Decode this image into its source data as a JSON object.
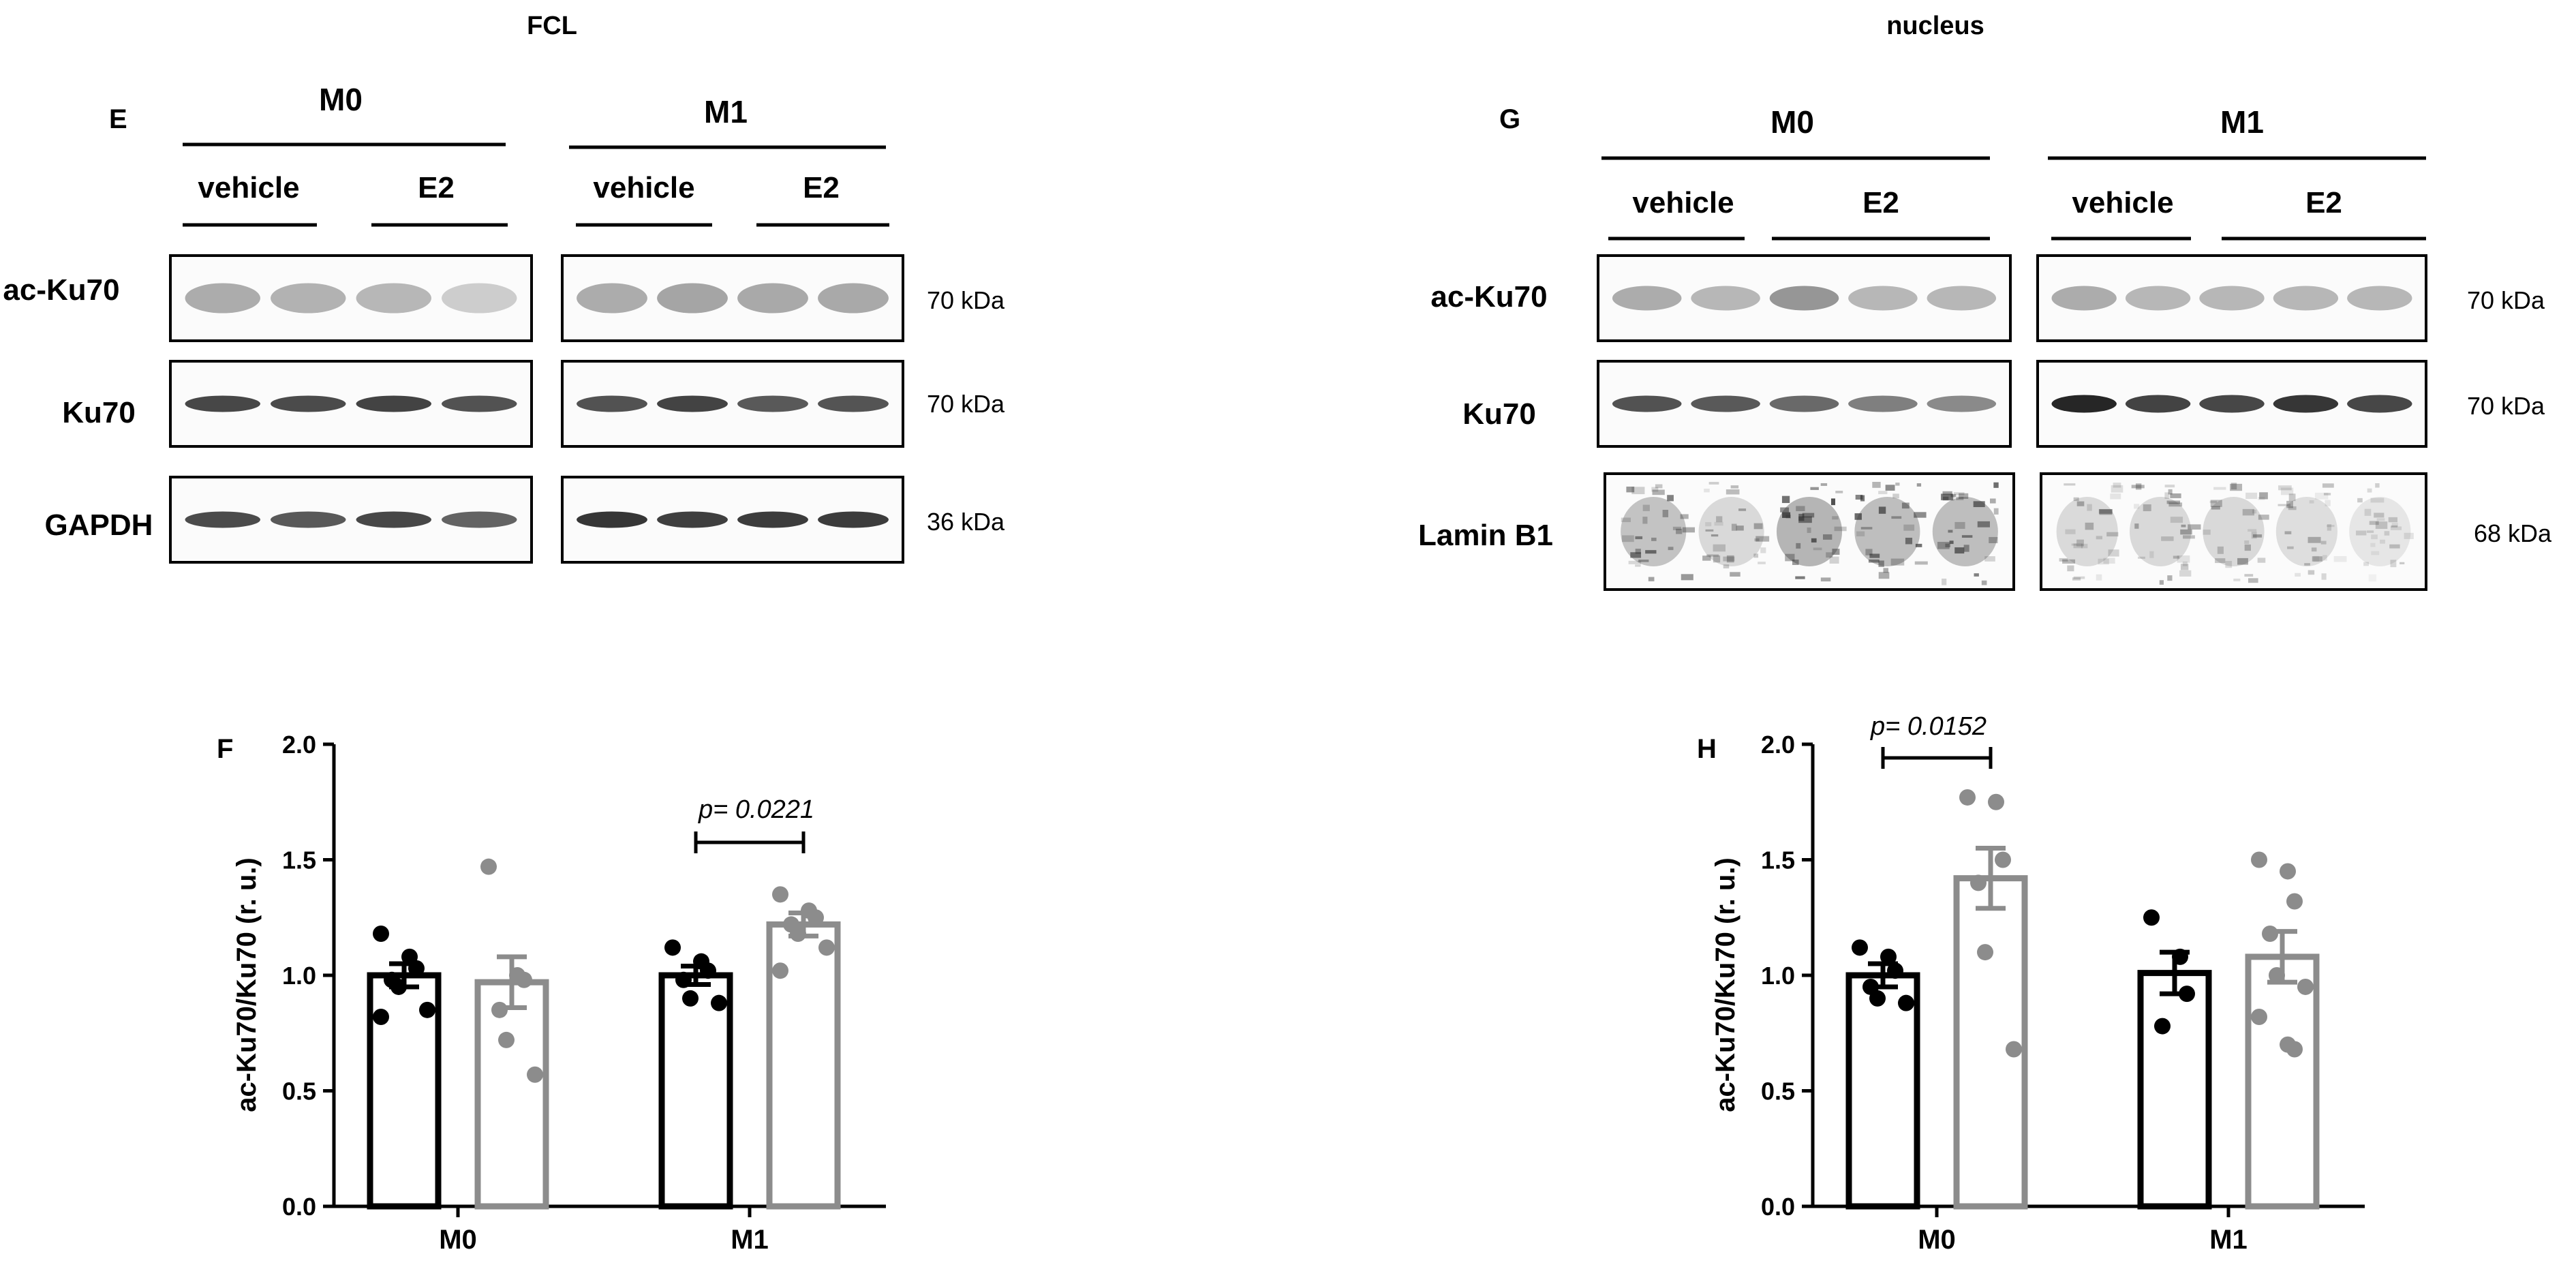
{
  "titles": {
    "left": "FCL",
    "right": "nucleus"
  },
  "blots": [
    {
      "panel": "E",
      "groups": [
        "M0",
        "M1"
      ],
      "subgroups": [
        "vehicle",
        "E2",
        "vehicle",
        "E2"
      ],
      "rows": [
        {
          "label": "ac-Ku70",
          "kda": "70 kDa"
        },
        {
          "label": "Ku70",
          "kda": "70 kDa"
        },
        {
          "label": "GAPDH",
          "kda": "36 kDa"
        }
      ]
    },
    {
      "panel": "G",
      "groups": [
        "M0",
        "M1"
      ],
      "subgroups": [
        "vehicle",
        "E2",
        "vehicle",
        "E2"
      ],
      "rows": [
        {
          "label": "ac-Ku70",
          "kda": "70 kDa"
        },
        {
          "label": "Ku70",
          "kda": "70 kDa"
        },
        {
          "label": "Lamin B1",
          "kda": "68 kDa"
        }
      ]
    }
  ],
  "colors": {
    "vehicle": "#000000",
    "E2": "#8c8c8c"
  },
  "chart_data": [
    {
      "panel": "F",
      "type": "bar",
      "categories": [
        "M0",
        "M1"
      ],
      "ylabel": "ac-Ku70/Ku70 (r. u.)",
      "ylim": [
        0,
        2
      ],
      "yticks": [
        "0.0",
        "0.5",
        "1.0",
        "1.5",
        "2.0"
      ],
      "series": [
        {
          "values": [
            1.0,
            1.0
          ],
          "sem": [
            0.05,
            0.04
          ],
          "points": [
            [
              1.18,
              1.08,
              1.03,
              0.98,
              0.95,
              0.85,
              0.82
            ],
            [
              1.12,
              1.06,
              1.02,
              0.98,
              0.9,
              0.88
            ]
          ]
        },
        {
          "values": [
            0.97,
            1.22
          ],
          "sem": [
            0.11,
            0.05
          ],
          "points": [
            [
              1.47,
              1.0,
              0.98,
              0.85,
              0.72,
              0.57
            ],
            [
              1.35,
              1.28,
              1.25,
              1.22,
              1.18,
              1.12,
              1.02
            ]
          ]
        }
      ],
      "annotation": {
        "text": "p= 0.0221",
        "category": "M1"
      }
    },
    {
      "panel": "H",
      "type": "bar",
      "categories": [
        "M0",
        "M1"
      ],
      "ylabel": "ac-Ku70/Ku70 (r. u.)",
      "ylim": [
        0,
        2
      ],
      "yticks": [
        "0.0",
        "0.5",
        "1.0",
        "1.5",
        "2.0"
      ],
      "series": [
        {
          "values": [
            1.0,
            1.01
          ],
          "sem": [
            0.05,
            0.09
          ],
          "points": [
            [
              1.12,
              1.08,
              1.02,
              0.95,
              0.9,
              0.88
            ],
            [
              1.25,
              1.08,
              0.92,
              0.78
            ]
          ]
        },
        {
          "values": [
            1.42,
            1.08
          ],
          "sem": [
            0.13,
            0.11
          ],
          "points": [
            [
              1.77,
              1.75,
              1.5,
              1.4,
              1.1,
              0.68
            ],
            [
              1.5,
              1.45,
              1.32,
              1.18,
              1.0,
              0.95,
              0.82,
              0.7,
              0.68
            ]
          ]
        }
      ],
      "annotation": {
        "text": "p= 0.0152",
        "category": "M0"
      }
    }
  ]
}
